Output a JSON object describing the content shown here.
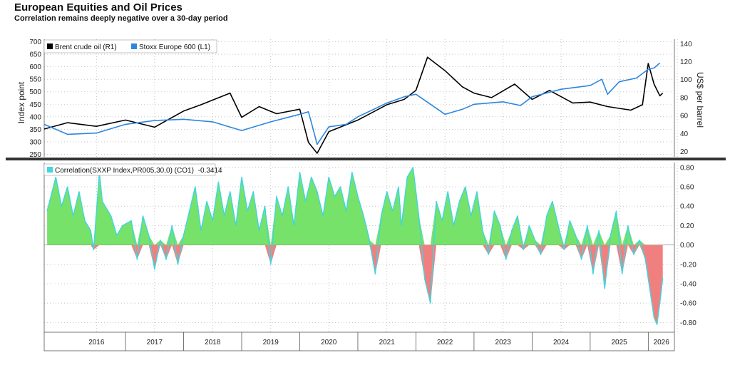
{
  "chart_data": [
    {
      "type": "line",
      "title": "European Equities and Oil Prices",
      "subtitle": "Correlation remains deeply negative over a 30-day period",
      "ylabel_left": "Index point",
      "ylabel_right": "US$ per barrel",
      "left_ticks": [
        250,
        300,
        350,
        400,
        450,
        500,
        550,
        600,
        650,
        700
      ],
      "left_tick_labels": [
        "250",
        "300",
        "350",
        "400",
        "450",
        "500",
        "550",
        "600",
        "650",
        "700"
      ],
      "right_ticks": [
        20,
        40,
        60,
        80,
        100,
        120,
        140
      ],
      "right_tick_labels": [
        "20",
        "40",
        "60",
        "80",
        "100",
        "120",
        "140"
      ],
      "ylim_left": [
        240,
        710
      ],
      "ylim_right": [
        14,
        145
      ],
      "legend": "top-left",
      "grid": true,
      "series": [
        {
          "name": "Brent crude oil (R1)",
          "axis": "right",
          "color": "#000000",
          "x": [
            2015.6,
            2016.0,
            2016.5,
            2017.0,
            2017.5,
            2018.0,
            2018.3,
            2018.8,
            2019.0,
            2019.3,
            2019.6,
            2020.0,
            2020.15,
            2020.3,
            2020.5,
            2021.0,
            2021.5,
            2021.8,
            2022.0,
            2022.2,
            2022.5,
            2022.8,
            2023.0,
            2023.3,
            2023.7,
            2024.0,
            2024.3,
            2024.7,
            2025.0,
            2025.3,
            2025.7,
            2025.9,
            2026.0,
            2026.1,
            2026.2,
            2026.25
          ],
          "values": [
            45,
            52,
            48,
            55,
            47,
            65,
            72,
            85,
            58,
            70,
            62,
            67,
            30,
            18,
            42,
            55,
            72,
            78,
            88,
            125,
            110,
            92,
            85,
            80,
            95,
            78,
            88,
            74,
            75,
            70,
            66,
            72,
            118,
            95,
            82,
            85
          ]
        },
        {
          "name": "Stoxx Europe 600 (L1)",
          "axis": "left",
          "color": "#2e86de",
          "x": [
            2015.6,
            2016.0,
            2016.5,
            2017.0,
            2017.5,
            2018.0,
            2018.5,
            2019.0,
            2019.5,
            2020.0,
            2020.15,
            2020.3,
            2020.5,
            2020.8,
            2021.0,
            2021.5,
            2021.8,
            2022.0,
            2022.5,
            2022.8,
            2023.0,
            2023.5,
            2023.8,
            2024.0,
            2024.5,
            2025.0,
            2025.2,
            2025.3,
            2025.5,
            2025.8,
            2026.0,
            2026.1,
            2026.2
          ],
          "values": [
            370,
            330,
            335,
            370,
            385,
            390,
            380,
            345,
            380,
            410,
            420,
            290,
            360,
            370,
            400,
            455,
            480,
            490,
            410,
            430,
            450,
            460,
            445,
            480,
            510,
            525,
            550,
            490,
            540,
            555,
            590,
            595,
            615
          ]
        }
      ]
    },
    {
      "type": "area",
      "legend_label": "Correlation(SXXP Index,PR005,30,0) (CO1)",
      "legend_value": "-0.3414",
      "legend": "top-left",
      "grid": true,
      "y_ticks": [
        -0.8,
        -0.6,
        -0.4,
        -0.2,
        0,
        0.2,
        0.4,
        0.6,
        0.8
      ],
      "y_tick_labels": [
        "-0.80",
        "-0.60",
        "-0.40",
        "-0.20",
        "0.00",
        "0.20",
        "0.40",
        "0.60",
        "0.80"
      ],
      "ylim": [
        -0.9,
        0.85
      ],
      "positive_color": "#77e26a",
      "negative_color": "#f08080",
      "line_color": "#3fd6e0",
      "x_categories": [
        "2016",
        "2017",
        "2018",
        "2019",
        "2020",
        "2021",
        "2022",
        "2023",
        "2024",
        "2025",
        "2026"
      ],
      "x": [
        2015.65,
        2015.8,
        2015.9,
        2016.0,
        2016.1,
        2016.2,
        2016.3,
        2016.4,
        2016.45,
        2016.55,
        2016.6,
        2016.75,
        2016.85,
        2016.95,
        2017.1,
        2017.2,
        2017.3,
        2017.4,
        2017.5,
        2017.6,
        2017.7,
        2017.8,
        2017.9,
        2018.0,
        2018.1,
        2018.2,
        2018.3,
        2018.4,
        2018.5,
        2018.6,
        2018.7,
        2018.8,
        2018.9,
        2019.0,
        2019.1,
        2019.2,
        2019.3,
        2019.4,
        2019.5,
        2019.6,
        2019.7,
        2019.8,
        2019.9,
        2020.0,
        2020.1,
        2020.2,
        2020.3,
        2020.4,
        2020.5,
        2020.6,
        2020.7,
        2020.8,
        2020.9,
        2021.0,
        2021.1,
        2021.2,
        2021.3,
        2021.4,
        2021.5,
        2021.6,
        2021.7,
        2021.75,
        2021.85,
        2021.95,
        2022.05,
        2022.15,
        2022.25,
        2022.35,
        2022.45,
        2022.55,
        2022.65,
        2022.75,
        2022.85,
        2022.95,
        2023.05,
        2023.15,
        2023.25,
        2023.35,
        2023.45,
        2023.55,
        2023.65,
        2023.75,
        2023.85,
        2023.95,
        2024.05,
        2024.15,
        2024.25,
        2024.35,
        2024.45,
        2024.55,
        2024.65,
        2024.75,
        2024.85,
        2024.95,
        2025.05,
        2025.15,
        2025.25,
        2025.35,
        2025.45,
        2025.55,
        2025.65,
        2025.75,
        2025.85,
        2025.95,
        2026.05,
        2026.1,
        2026.15,
        2026.2,
        2026.25
      ],
      "values": [
        0.35,
        0.7,
        0.4,
        0.6,
        0.3,
        0.55,
        0.25,
        0.15,
        -0.05,
        0.75,
        0.45,
        0.3,
        0.1,
        0.2,
        0.25,
        -0.15,
        0.3,
        0.1,
        -0.25,
        0.05,
        -0.15,
        0.2,
        -0.2,
        0.1,
        0.35,
        0.6,
        0.15,
        0.45,
        0.25,
        0.65,
        0.3,
        0.55,
        0.2,
        0.7,
        0.35,
        0.55,
        0.15,
        0.4,
        -0.2,
        0.5,
        0.3,
        0.6,
        0.2,
        0.75,
        0.45,
        0.7,
        0.55,
        0.3,
        0.7,
        0.5,
        0.6,
        0.35,
        0.75,
        0.5,
        0.3,
        0.05,
        -0.3,
        0.3,
        0.55,
        0.35,
        0.6,
        0.2,
        0.7,
        0.8,
        0.3,
        -0.35,
        -0.6,
        0.45,
        0.25,
        0.55,
        0.2,
        0.45,
        0.6,
        0.3,
        0.55,
        0.15,
        -0.1,
        0.35,
        0.2,
        -0.15,
        0.15,
        0.3,
        -0.05,
        0.2,
        0.05,
        -0.1,
        0.3,
        0.45,
        0.2,
        -0.05,
        0.25,
        0.1,
        -0.15,
        0.2,
        -0.3,
        0.15,
        -0.45,
        0.1,
        0.35,
        -0.3,
        0.2,
        -0.1,
        0.05,
        -0.15,
        -0.55,
        -0.75,
        -0.82,
        -0.6,
        -0.34
      ]
    }
  ]
}
